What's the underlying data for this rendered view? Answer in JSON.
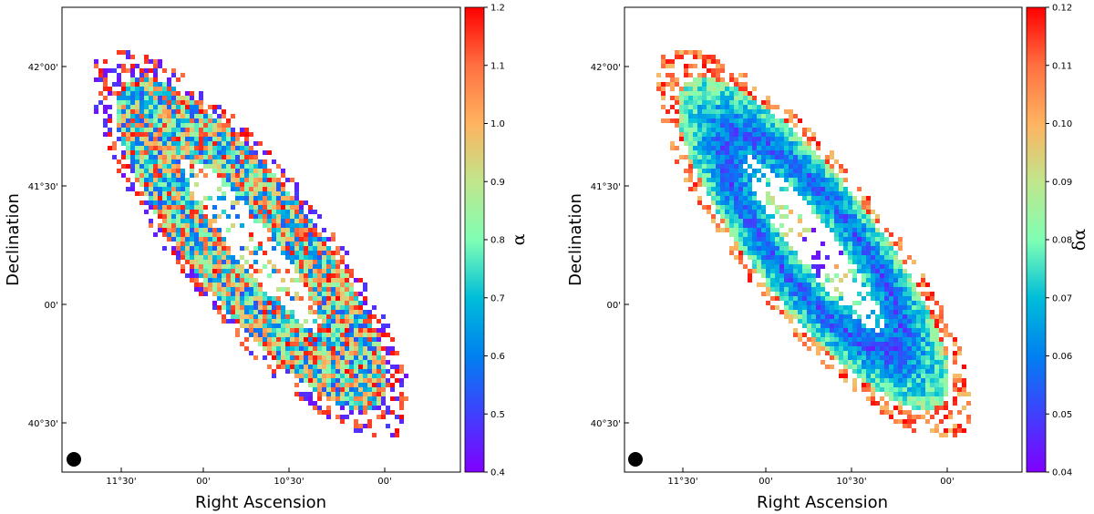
{
  "chart_data": [
    {
      "type": "heatmap",
      "panel": "spectral index map",
      "xlabel": "Right Ascension",
      "ylabel": "Declination",
      "x_ticks": [
        "11°30'",
        "00'",
        "10°30'",
        "00'"
      ],
      "y_ticks": [
        "42°00'",
        "41°30'",
        "00'",
        "40°30'"
      ],
      "colorbar": {
        "label": "α",
        "min": 0.4,
        "max": 1.2,
        "ticks": [
          "0.4",
          "0.5",
          "0.6",
          "0.7",
          "0.8",
          "0.9",
          "1.0",
          "1.1",
          "1.2"
        ],
        "colormap": "rainbow"
      },
      "beam_marker": true
    },
    {
      "type": "heatmap",
      "panel": "spectral index error map",
      "xlabel": "Right Ascension",
      "ylabel": "Declination",
      "x_ticks": [
        "11°30'",
        "00'",
        "10°30'",
        "00'"
      ],
      "y_ticks": [
        "42°00'",
        "41°30'",
        "00'",
        "40°30'"
      ],
      "colorbar": {
        "label": "δα",
        "min": 0.04,
        "max": 0.12,
        "ticks": [
          "0.04",
          "0.05",
          "0.06",
          "0.07",
          "0.08",
          "0.09",
          "0.10",
          "0.11",
          "0.12"
        ],
        "colormap": "rainbow"
      },
      "beam_marker": true
    }
  ]
}
